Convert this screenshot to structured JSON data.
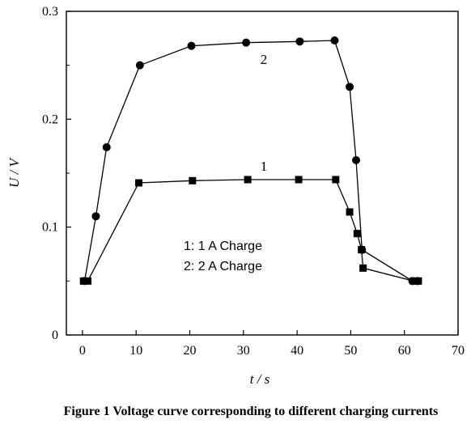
{
  "chart_data": {
    "type": "line",
    "title": "",
    "xlabel": "t / s",
    "ylabel": "U / V",
    "xlim": [
      -3,
      70
    ],
    "ylim": [
      0,
      0.3
    ],
    "x_ticks": [
      0,
      10,
      20,
      30,
      40,
      50,
      60,
      70
    ],
    "y_ticks": [
      0,
      0.1,
      0.2,
      0.3
    ],
    "x_tick_labels": [
      "0",
      "10",
      "20",
      "30",
      "40",
      "50",
      "60",
      "70"
    ],
    "y_tick_labels": [
      "0",
      "0.1",
      "0.2",
      "0.3"
    ],
    "grid": false,
    "series": [
      {
        "name": "1",
        "label": "1",
        "marker": "square",
        "x": [
          0.2,
          1.0,
          10.5,
          20.5,
          30.8,
          40.3,
          47.2,
          49.8,
          51.2,
          52.0,
          52.3,
          61.7,
          62.6
        ],
        "y": [
          0.05,
          0.05,
          0.141,
          0.143,
          0.144,
          0.144,
          0.144,
          0.114,
          0.094,
          0.079,
          0.062,
          0.05,
          0.05
        ]
      },
      {
        "name": "2",
        "label": "2",
        "marker": "circle",
        "x": [
          0.4,
          2.5,
          4.5,
          10.7,
          20.3,
          30.5,
          40.5,
          47.0,
          49.8,
          51.0,
          52.1,
          61.5,
          62.5
        ],
        "y": [
          0.05,
          0.11,
          0.174,
          0.25,
          0.268,
          0.271,
          0.272,
          0.273,
          0.23,
          0.162,
          0.079,
          0.05,
          0.05
        ]
      }
    ],
    "annotations": {
      "label_1": "1",
      "label_2": "2"
    },
    "legend_lines": [
      "1: 1 A Charge",
      "2: 2 A Charge"
    ],
    "legend_placement": "center-bottom inside plot"
  },
  "caption": "Figure 1 Voltage curve corresponding to different charging currents"
}
